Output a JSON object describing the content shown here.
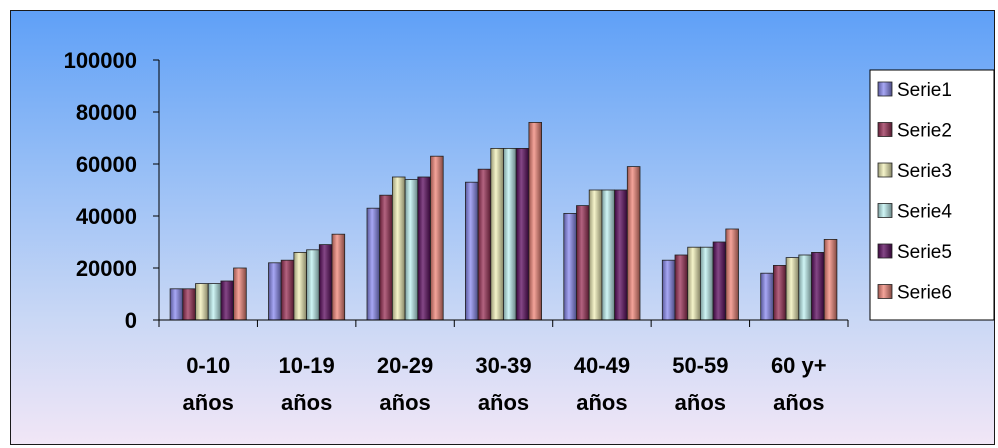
{
  "chart_data": {
    "type": "bar",
    "categories": [
      [
        "0-10",
        "años"
      ],
      [
        "10-19",
        "años"
      ],
      [
        "20-29",
        "años"
      ],
      [
        "30-39",
        "años"
      ],
      [
        "40-49",
        "años"
      ],
      [
        "50-59",
        "años"
      ],
      [
        "60 y+",
        "años"
      ]
    ],
    "series": [
      {
        "name": "Serie1",
        "color": "#8a8af0",
        "values": [
          12000,
          22000,
          43000,
          53000,
          41000,
          23000,
          18000
        ]
      },
      {
        "name": "Serie2",
        "color": "#9a2f55",
        "values": [
          12000,
          23000,
          48000,
          58000,
          44000,
          25000,
          21000
        ]
      },
      {
        "name": "Serie3",
        "color": "#f2f0b8",
        "values": [
          14000,
          26000,
          55000,
          66000,
          50000,
          28000,
          24000
        ]
      },
      {
        "name": "Serie4",
        "color": "#bff2f2",
        "values": [
          14000,
          27000,
          54000,
          66000,
          50000,
          28000,
          25000
        ]
      },
      {
        "name": "Serie5",
        "color": "#5b0a5e",
        "values": [
          15000,
          29000,
          55000,
          66000,
          50000,
          30000,
          26000
        ]
      },
      {
        "name": "Serie6",
        "color": "#f08578",
        "values": [
          20000,
          33000,
          63000,
          76000,
          59000,
          35000,
          31000
        ]
      }
    ],
    "y_ticks": [
      "0",
      "20000",
      "40000",
      "60000",
      "80000",
      "100000"
    ],
    "ylim": [
      0,
      100000
    ],
    "grid": false,
    "legend_position": "right"
  }
}
